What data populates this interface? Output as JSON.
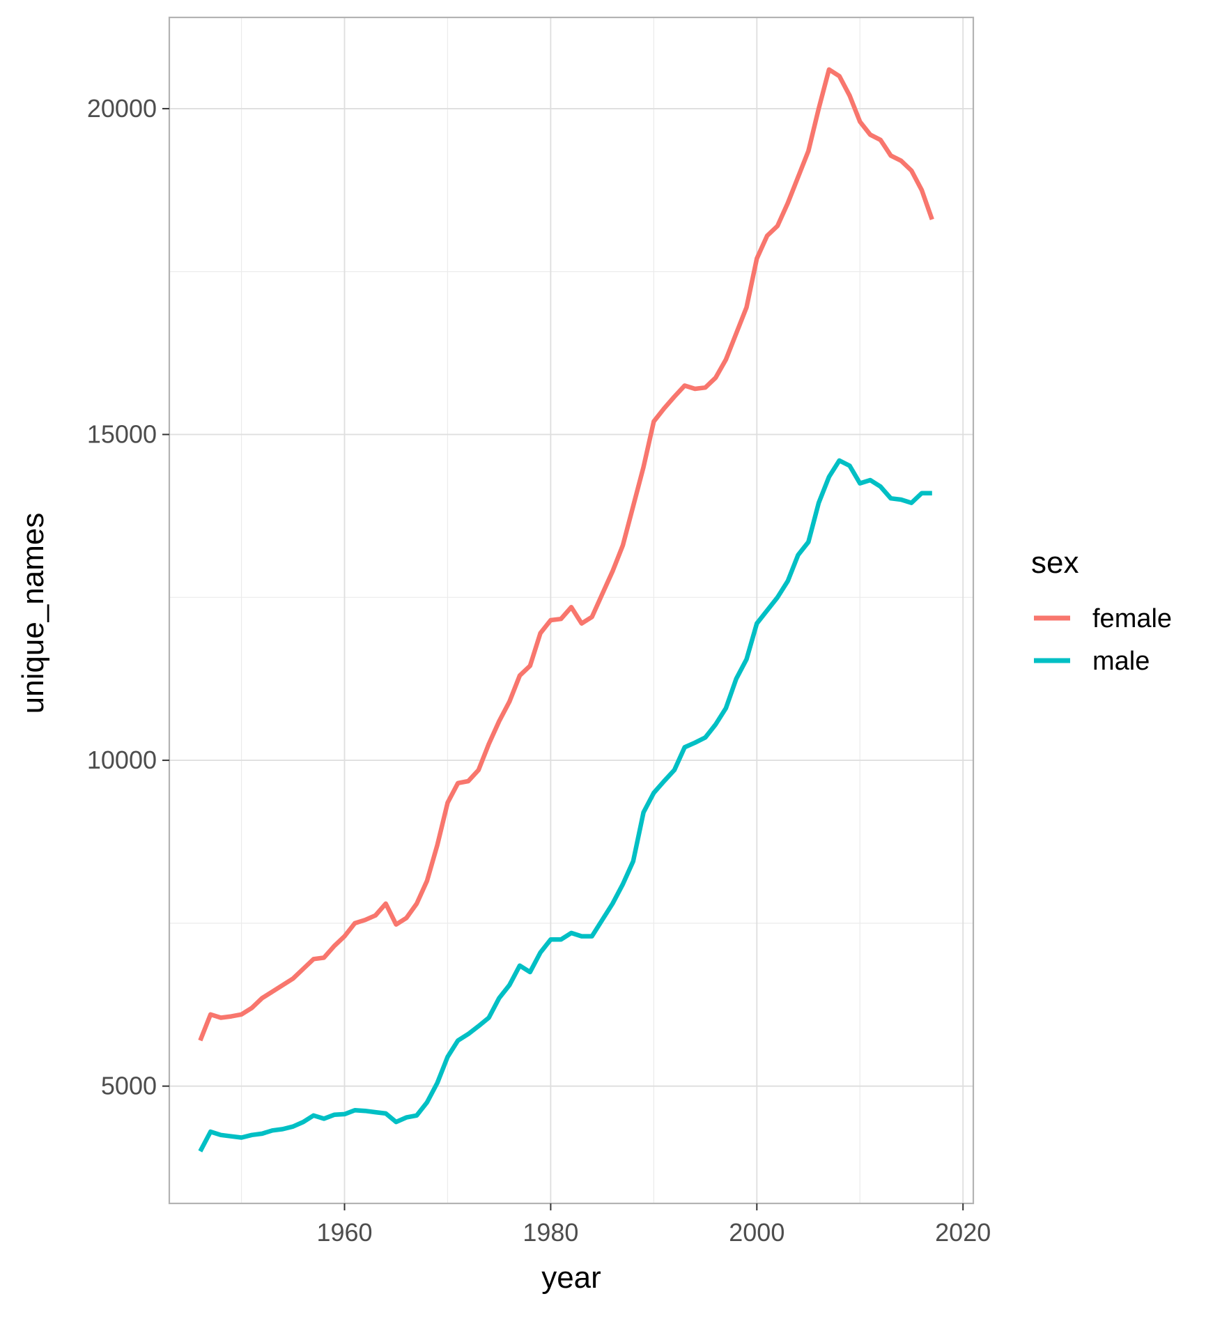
{
  "chart_data": {
    "type": "line",
    "xlabel": "year",
    "ylabel": "unique_names",
    "xlim": [
      1943,
      2021
    ],
    "ylim": [
      3200,
      21400
    ],
    "x_ticks": [
      1960,
      1980,
      2000,
      2020
    ],
    "y_ticks": [
      5000,
      10000,
      15000,
      20000
    ],
    "x_tick_labels": [
      "1960",
      "1980",
      "2000",
      "2020"
    ],
    "y_tick_labels": [
      "5000",
      "10000",
      "15000",
      "20000"
    ],
    "grid": true,
    "legend": {
      "title": "sex",
      "position": "right"
    },
    "x": [
      1946,
      1947,
      1948,
      1949,
      1950,
      1951,
      1952,
      1953,
      1954,
      1955,
      1956,
      1957,
      1958,
      1959,
      1960,
      1961,
      1962,
      1963,
      1964,
      1965,
      1966,
      1967,
      1968,
      1969,
      1970,
      1971,
      1972,
      1973,
      1974,
      1975,
      1976,
      1977,
      1978,
      1979,
      1980,
      1981,
      1982,
      1983,
      1984,
      1985,
      1986,
      1987,
      1988,
      1989,
      1990,
      1991,
      1992,
      1993,
      1994,
      1995,
      1996,
      1997,
      1998,
      1999,
      2000,
      2001,
      2002,
      2003,
      2004,
      2005,
      2006,
      2007,
      2008,
      2009,
      2010,
      2011,
      2012,
      2013,
      2014,
      2015,
      2016,
      2017
    ],
    "series": [
      {
        "name": "female",
        "color": "#F8766D",
        "values": [
          5700,
          6100,
          6050,
          6070,
          6100,
          6200,
          6350,
          6450,
          6550,
          6650,
          6800,
          6950,
          6970,
          7150,
          7300,
          7500,
          7550,
          7620,
          7800,
          7480,
          7580,
          7800,
          8150,
          8700,
          9350,
          9650,
          9680,
          9850,
          10250,
          10600,
          10900,
          11300,
          11450,
          11950,
          12150,
          12170,
          12350,
          12100,
          12200,
          12550,
          12900,
          13300,
          13900,
          14500,
          15200,
          15400,
          15580,
          15750,
          15700,
          15720,
          15870,
          16150,
          16550,
          16950,
          17700,
          18050,
          18200,
          18550,
          18950,
          19350,
          20000,
          20600,
          20500,
          20200,
          19800,
          19600,
          19520,
          19280,
          19200,
          19050,
          18750,
          18300
        ]
      },
      {
        "name": "male",
        "color": "#00BFC4",
        "values": [
          4000,
          4300,
          4250,
          4230,
          4210,
          4250,
          4270,
          4320,
          4340,
          4380,
          4450,
          4550,
          4500,
          4560,
          4570,
          4630,
          4620,
          4600,
          4580,
          4450,
          4520,
          4550,
          4750,
          5050,
          5450,
          5700,
          5800,
          5920,
          6050,
          6350,
          6550,
          6850,
          6750,
          7050,
          7250,
          7250,
          7350,
          7300,
          7300,
          7550,
          7800,
          8100,
          8450,
          9200,
          9500,
          9680,
          9850,
          10200,
          10270,
          10350,
          10550,
          10800,
          11250,
          11550,
          12100,
          12300,
          12500,
          12750,
          13150,
          13350,
          13950,
          14350,
          14600,
          14520,
          14250,
          14300,
          14200,
          14020,
          14000,
          13950,
          14100,
          14100
        ]
      }
    ]
  }
}
